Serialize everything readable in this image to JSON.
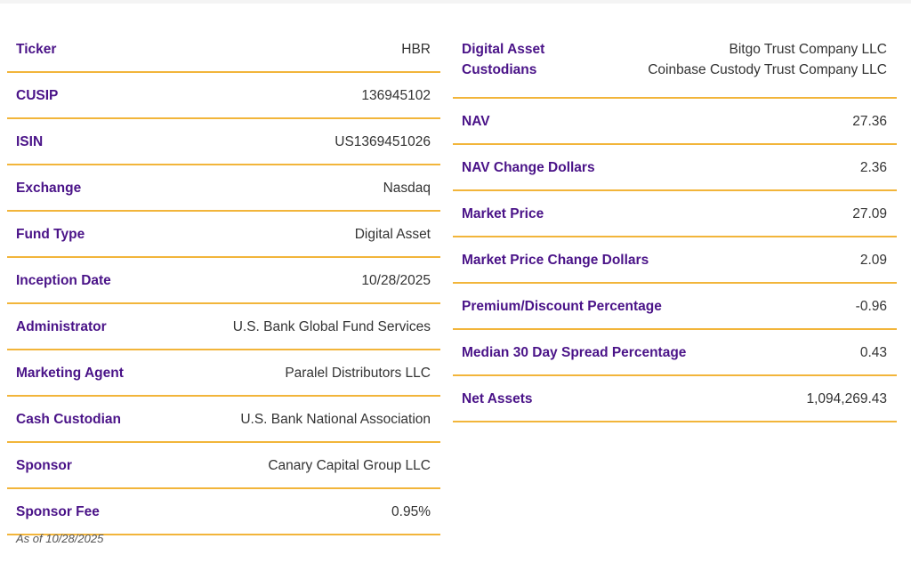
{
  "left_table": [
    {
      "label": "Ticker",
      "value": "HBR"
    },
    {
      "label": "CUSIP",
      "value": "136945102"
    },
    {
      "label": "ISIN",
      "value": "US1369451026"
    },
    {
      "label": "Exchange",
      "value": "Nasdaq"
    },
    {
      "label": "Fund Type",
      "value": "Digital Asset"
    },
    {
      "label": "Inception Date",
      "value": "10/28/2025"
    },
    {
      "label": "Administrator",
      "value": "U.S. Bank Global Fund Services"
    },
    {
      "label": "Marketing Agent",
      "value": "Paralel Distributors LLC"
    },
    {
      "label": "Cash Custodian",
      "value": "U.S. Bank National Association"
    },
    {
      "label": "Sponsor",
      "value": "Canary Capital Group LLC"
    },
    {
      "label": "Sponsor Fee",
      "value": "0.95%"
    }
  ],
  "custodians": {
    "label_line1": "Digital Asset",
    "label_line2": "Custodians",
    "value_line1": "Bitgo Trust Company LLC",
    "value_line2": "Coinbase Custody Trust Company LLC"
  },
  "right_table": [
    {
      "label": "NAV",
      "value": "27.36"
    },
    {
      "label": "NAV Change Dollars",
      "value": "2.36"
    },
    {
      "label": "Market Price",
      "value": "27.09"
    },
    {
      "label": "Market Price Change Dollars",
      "value": "2.09"
    },
    {
      "label": "Premium/Discount Percentage",
      "value": "-0.96"
    },
    {
      "label": "Median 30 Day Spread Percentage",
      "value": "0.43"
    },
    {
      "label": "Net Assets",
      "value": "1,094,269.43"
    }
  ],
  "as_of": "As of 10/28/2025",
  "colors": {
    "label": "#4a1388",
    "divider": "#f2b53a",
    "value": "#333333"
  }
}
